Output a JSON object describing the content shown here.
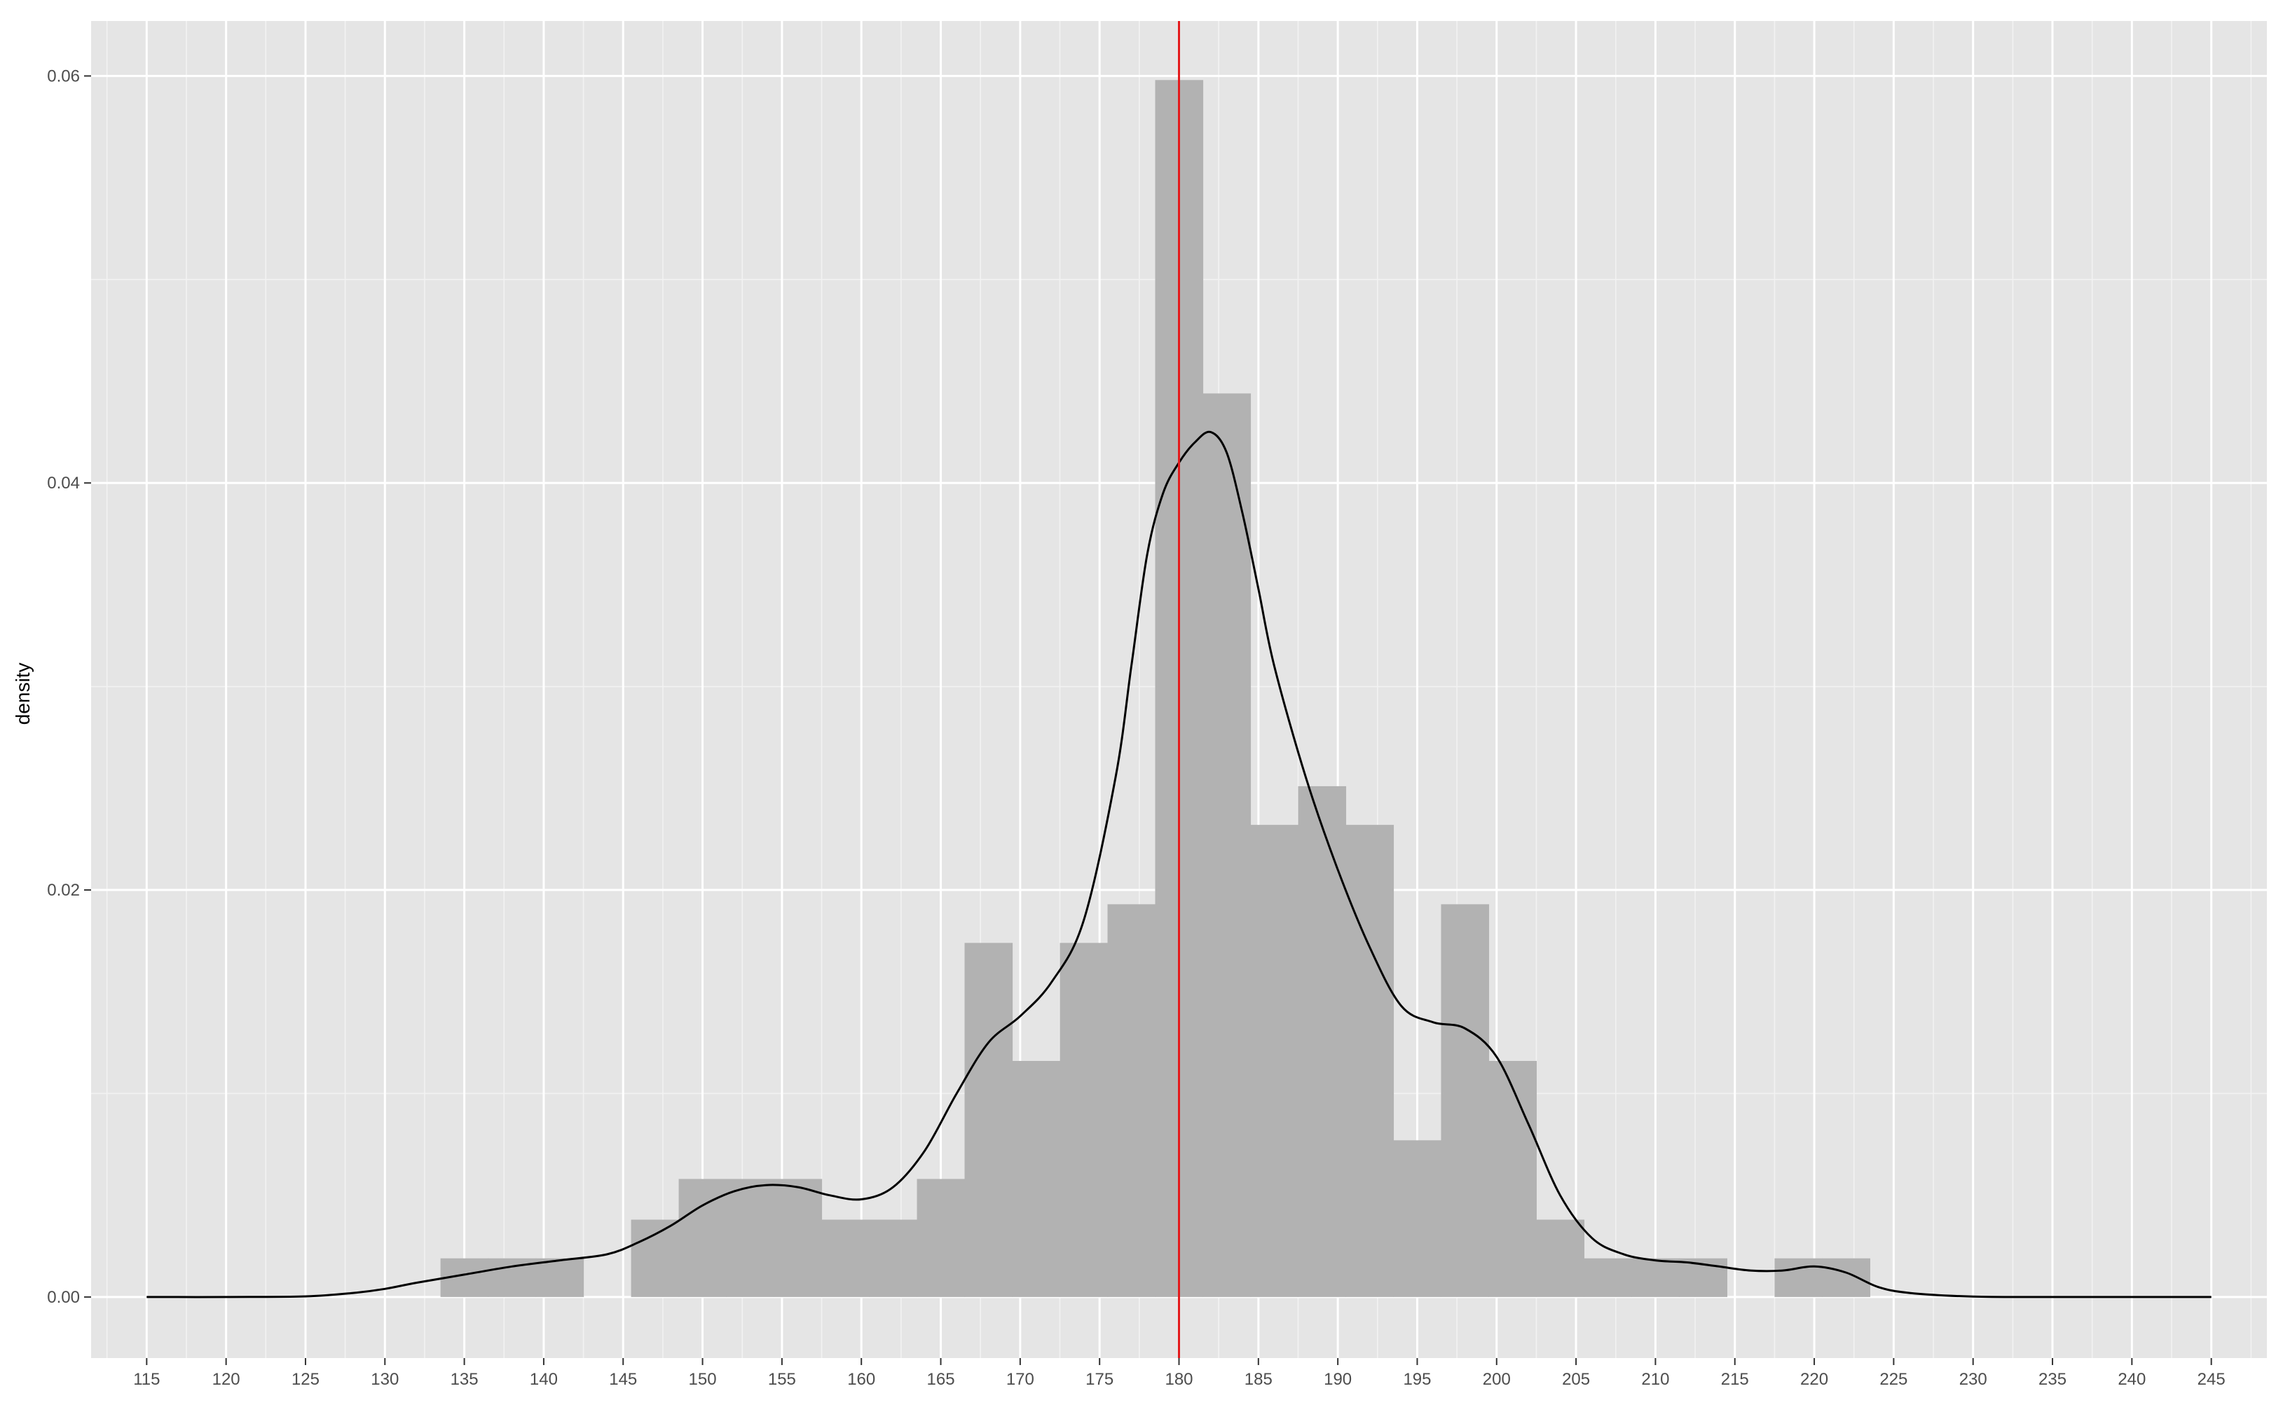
{
  "chart_data": {
    "type": "histogram",
    "title": "",
    "xlabel": "",
    "ylabel": "density",
    "xlim": [
      111.5,
      248.5
    ],
    "ylim": [
      -0.003,
      0.0627
    ],
    "x_ticks": [
      115,
      120,
      125,
      130,
      135,
      140,
      145,
      150,
      155,
      160,
      165,
      170,
      175,
      180,
      185,
      190,
      195,
      200,
      205,
      210,
      215,
      220,
      225,
      230,
      235,
      240,
      245
    ],
    "x_tick_labels": [
      "115",
      "120",
      "125",
      "130",
      "135",
      "140",
      "145",
      "150",
      "155",
      "160",
      "165",
      "170",
      "175",
      "180",
      "185",
      "190",
      "195",
      "200",
      "205",
      "210",
      "215",
      "220",
      "225",
      "230",
      "235",
      "240",
      "245"
    ],
    "y_ticks": [
      0.0,
      0.02,
      0.04,
      0.06
    ],
    "y_tick_labels": [
      "0.00",
      "0.02",
      "0.04",
      "0.06"
    ],
    "grid": true,
    "bins": [
      {
        "x0": 133.5,
        "x1": 136.5,
        "density": 0.0019
      },
      {
        "x0": 136.5,
        "x1": 139.5,
        "density": 0.0019
      },
      {
        "x0": 139.5,
        "x1": 142.5,
        "density": 0.0019
      },
      {
        "x0": 142.5,
        "x1": 145.5,
        "density": 0.0
      },
      {
        "x0": 145.5,
        "x1": 148.5,
        "density": 0.0038
      },
      {
        "x0": 148.5,
        "x1": 151.5,
        "density": 0.0058
      },
      {
        "x0": 151.5,
        "x1": 154.5,
        "density": 0.0058
      },
      {
        "x0": 154.5,
        "x1": 157.5,
        "density": 0.0058
      },
      {
        "x0": 157.5,
        "x1": 160.5,
        "density": 0.0038
      },
      {
        "x0": 160.5,
        "x1": 163.5,
        "density": 0.0038
      },
      {
        "x0": 163.5,
        "x1": 166.5,
        "density": 0.0058
      },
      {
        "x0": 166.5,
        "x1": 169.5,
        "density": 0.0174
      },
      {
        "x0": 169.5,
        "x1": 172.5,
        "density": 0.0116
      },
      {
        "x0": 172.5,
        "x1": 175.5,
        "density": 0.0174
      },
      {
        "x0": 175.5,
        "x1": 178.5,
        "density": 0.0193
      },
      {
        "x0": 178.5,
        "x1": 181.5,
        "density": 0.0598
      },
      {
        "x0": 181.5,
        "x1": 184.5,
        "density": 0.0444
      },
      {
        "x0": 184.5,
        "x1": 187.5,
        "density": 0.0232
      },
      {
        "x0": 187.5,
        "x1": 190.5,
        "density": 0.0251
      },
      {
        "x0": 190.5,
        "x1": 193.5,
        "density": 0.0232
      },
      {
        "x0": 193.5,
        "x1": 196.5,
        "density": 0.0077
      },
      {
        "x0": 196.5,
        "x1": 199.5,
        "density": 0.0193
      },
      {
        "x0": 199.5,
        "x1": 202.5,
        "density": 0.0116
      },
      {
        "x0": 202.5,
        "x1": 205.5,
        "density": 0.0038
      },
      {
        "x0": 205.5,
        "x1": 208.5,
        "density": 0.0019
      },
      {
        "x0": 208.5,
        "x1": 211.5,
        "density": 0.0019
      },
      {
        "x0": 211.5,
        "x1": 214.5,
        "density": 0.0019
      },
      {
        "x0": 214.5,
        "x1": 217.5,
        "density": 0.0
      },
      {
        "x0": 217.5,
        "x1": 220.5,
        "density": 0.0019
      },
      {
        "x0": 220.5,
        "x1": 223.5,
        "density": 0.0019
      }
    ],
    "density_curve": {
      "x": [
        115,
        120,
        125,
        128,
        130,
        132,
        135,
        138,
        141,
        144,
        146,
        148,
        150,
        152,
        154,
        156,
        158,
        160,
        162,
        164,
        166,
        168,
        170,
        172,
        174,
        176,
        177,
        178,
        179,
        180,
        181,
        182,
        183,
        184,
        185,
        186,
        188,
        190,
        192,
        194,
        196,
        198,
        200,
        202,
        204,
        206,
        208,
        210,
        212,
        214,
        216,
        218,
        220,
        222,
        224,
        226,
        230,
        235,
        240,
        245
      ],
      "y": [
        0.0,
        0.0,
        3e-05,
        0.0002,
        0.0004,
        0.0007,
        0.0011,
        0.0015,
        0.0018,
        0.0021,
        0.0027,
        0.0035,
        0.0045,
        0.0052,
        0.0055,
        0.0054,
        0.005,
        0.0048,
        0.0054,
        0.0072,
        0.01,
        0.0125,
        0.0138,
        0.0155,
        0.0185,
        0.0255,
        0.031,
        0.0365,
        0.0395,
        0.041,
        0.042,
        0.0425,
        0.0415,
        0.0385,
        0.0348,
        0.031,
        0.0255,
        0.021,
        0.0172,
        0.0143,
        0.0135,
        0.0132,
        0.0118,
        0.0085,
        0.005,
        0.0029,
        0.0021,
        0.0018,
        0.0017,
        0.0015,
        0.0013,
        0.0013,
        0.0015,
        0.0012,
        0.0005,
        0.0002,
        2e-05,
        0.0,
        0.0,
        0.0
      ]
    },
    "vline": {
      "x": 180,
      "color": "#e41a1c"
    },
    "colors": {
      "panel_background": "#e5e5e5",
      "grid_major": "#ffffff",
      "grid_minor": "#f2f2f2",
      "bar_fill": "#b2b2b2",
      "density_line": "#000000",
      "tick_mark": "#333333"
    }
  }
}
